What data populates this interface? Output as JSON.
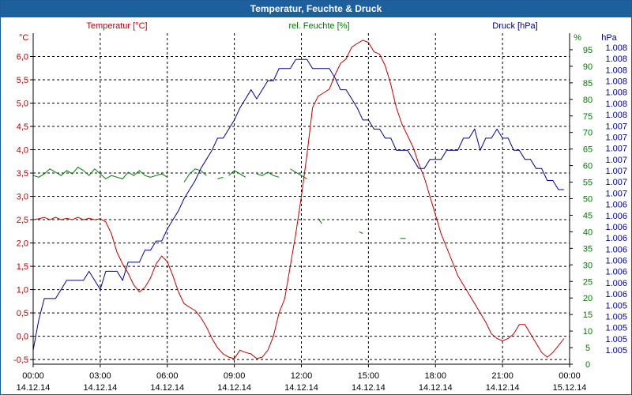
{
  "window": {
    "title": "Temperatur, Feuchte & Druck"
  },
  "colors": {
    "temperature": "#c00000",
    "humidity": "#007a00",
    "pressure": "#00008b",
    "titlebar": "#1e5f9e"
  },
  "chart_data": {
    "type": "line",
    "title": "Temperatur, Feuchte & Druck",
    "x_ticks": [
      {
        "t": 0,
        "time": "00:00",
        "date": "14.12.14"
      },
      {
        "t": 180,
        "time": "03:00",
        "date": "14.12.14"
      },
      {
        "t": 360,
        "time": "06:00",
        "date": "14.12.14"
      },
      {
        "t": 540,
        "time": "09:00",
        "date": "14.12.14"
      },
      {
        "t": 720,
        "time": "12:00",
        "date": "14.12.14"
      },
      {
        "t": 900,
        "time": "15:00",
        "date": "14.12.14"
      },
      {
        "t": 1080,
        "time": "18:00",
        "date": "14.12.14"
      },
      {
        "t": 1260,
        "time": "21:00",
        "date": "14.12.14"
      },
      {
        "t": 1440,
        "time": "00:00",
        "date": "15.12.14"
      }
    ],
    "xlim": [
      0,
      1440
    ],
    "axes": {
      "temperature": {
        "label": "Temperatur [°C]",
        "unit": "°C",
        "ylim": [
          -0.6,
          6.5
        ],
        "ticks": [
          -0.5,
          0,
          0.5,
          1,
          1.5,
          2,
          2.5,
          3,
          3.5,
          4,
          4.5,
          5,
          5.5,
          6
        ],
        "tick_labels": [
          "-0,5",
          "0,0",
          "0,5",
          "1,0",
          "1,5",
          "2,0",
          "2,5",
          "3,0",
          "3,5",
          "4,0",
          "4,5",
          "5,0",
          "5,5",
          "6,0"
        ]
      },
      "humidity": {
        "label": "rel. Feuchte [%]",
        "unit": "%",
        "ylim": [
          0,
          100
        ],
        "ticks": [
          0,
          5,
          10,
          15,
          20,
          25,
          30,
          35,
          40,
          45,
          50,
          55,
          60,
          65,
          70,
          75,
          80,
          85,
          90,
          95
        ],
        "tick_labels": [
          "0",
          "5",
          "10",
          "15",
          "20",
          "25",
          "30",
          "35",
          "40",
          "45",
          "50",
          "55",
          "60",
          "65",
          "70",
          "75",
          "80",
          "85",
          "90",
          "95"
        ]
      },
      "pressure": {
        "label": "Druck [hPa]",
        "unit": "hPa",
        "tick_labels": [
          "1.005",
          "1.005",
          "1.005",
          "1.005",
          "1.005",
          "1.006",
          "1.006",
          "1.006",
          "1.006",
          "1.006",
          "1.006",
          "1.006",
          "1.006",
          "1.006",
          "1.007",
          "1.007",
          "1.007",
          "1.007",
          "1.007",
          "1.007",
          "1.007",
          "1.008",
          "1.008",
          "1.008",
          "1.008",
          "1.008",
          "1.008",
          "1.008"
        ]
      }
    },
    "series": [
      {
        "name": "Temperatur",
        "axis": "temperature",
        "points": [
          [
            0,
            2.5
          ],
          [
            15,
            2.52
          ],
          [
            30,
            2.55
          ],
          [
            45,
            2.5
          ],
          [
            60,
            2.55
          ],
          [
            75,
            2.5
          ],
          [
            90,
            2.53
          ],
          [
            105,
            2.5
          ],
          [
            120,
            2.55
          ],
          [
            135,
            2.5
          ],
          [
            150,
            2.53
          ],
          [
            165,
            2.5
          ],
          [
            180,
            2.52
          ],
          [
            195,
            2.45
          ],
          [
            210,
            2.2
          ],
          [
            225,
            1.8
          ],
          [
            240,
            1.55
          ],
          [
            255,
            1.35
          ],
          [
            270,
            1.1
          ],
          [
            285,
            0.95
          ],
          [
            300,
            1.05
          ],
          [
            315,
            1.25
          ],
          [
            330,
            1.55
          ],
          [
            345,
            1.72
          ],
          [
            360,
            1.6
          ],
          [
            375,
            1.3
          ],
          [
            390,
            0.95
          ],
          [
            405,
            0.7
          ],
          [
            420,
            0.62
          ],
          [
            435,
            0.55
          ],
          [
            450,
            0.4
          ],
          [
            465,
            0.2
          ],
          [
            480,
            -0.05
          ],
          [
            495,
            -0.25
          ],
          [
            510,
            -0.38
          ],
          [
            525,
            -0.45
          ],
          [
            540,
            -0.48
          ],
          [
            555,
            -0.3
          ],
          [
            570,
            -0.35
          ],
          [
            585,
            -0.38
          ],
          [
            600,
            -0.48
          ],
          [
            615,
            -0.45
          ],
          [
            630,
            -0.3
          ],
          [
            645,
            0.0
          ],
          [
            660,
            0.5
          ],
          [
            675,
            0.8
          ],
          [
            690,
            1.5
          ],
          [
            705,
            2.2
          ],
          [
            720,
            3.0
          ],
          [
            735,
            3.9
          ],
          [
            750,
            4.9
          ],
          [
            765,
            5.15
          ],
          [
            780,
            5.22
          ],
          [
            795,
            5.3
          ],
          [
            810,
            5.6
          ],
          [
            825,
            5.85
          ],
          [
            840,
            5.95
          ],
          [
            855,
            6.2
          ],
          [
            870,
            6.28
          ],
          [
            885,
            6.35
          ],
          [
            900,
            6.3
          ],
          [
            915,
            6.1
          ],
          [
            930,
            6.05
          ],
          [
            945,
            5.8
          ],
          [
            960,
            5.4
          ],
          [
            975,
            4.9
          ],
          [
            990,
            4.55
          ],
          [
            1005,
            4.3
          ],
          [
            1020,
            4.05
          ],
          [
            1035,
            3.7
          ],
          [
            1050,
            3.4
          ],
          [
            1065,
            3.0
          ],
          [
            1080,
            2.6
          ],
          [
            1095,
            2.2
          ],
          [
            1110,
            1.9
          ],
          [
            1125,
            1.6
          ],
          [
            1140,
            1.3
          ],
          [
            1155,
            1.1
          ],
          [
            1170,
            0.9
          ],
          [
            1185,
            0.7
          ],
          [
            1200,
            0.5
          ],
          [
            1215,
            0.3
          ],
          [
            1230,
            0.05
          ],
          [
            1245,
            -0.05
          ],
          [
            1260,
            -0.1
          ],
          [
            1275,
            -0.05
          ],
          [
            1290,
            0.05
          ],
          [
            1305,
            0.25
          ],
          [
            1320,
            0.25
          ],
          [
            1335,
            0.05
          ],
          [
            1350,
            -0.15
          ],
          [
            1365,
            -0.35
          ],
          [
            1380,
            -0.45
          ],
          [
            1395,
            -0.35
          ],
          [
            1410,
            -0.2
          ],
          [
            1425,
            -0.05
          ]
        ]
      },
      {
        "name": "rel. Feuchte",
        "axis": "humidity",
        "segments": [
          [
            [
              0,
              57
            ],
            [
              15,
              56.5
            ],
            [
              30,
              57.5
            ],
            [
              45,
              59
            ],
            [
              60,
              58
            ],
            [
              75,
              57
            ],
            [
              90,
              58.5
            ],
            [
              105,
              57.5
            ],
            [
              120,
              59.5
            ],
            [
              135,
              58.5
            ],
            [
              150,
              57
            ],
            [
              165,
              59
            ],
            [
              180,
              57.5
            ],
            [
              195,
              56
            ],
            [
              210,
              57
            ],
            [
              225,
              56.5
            ],
            [
              240,
              56
            ],
            [
              255,
              58
            ],
            [
              270,
              57
            ],
            [
              285,
              58.5
            ],
            [
              300,
              57
            ],
            [
              315,
              56.5
            ],
            [
              330,
              57
            ],
            [
              345,
              57.5
            ],
            [
              360,
              56.5
            ]
          ],
          [
            [
              405,
              55
            ],
            [
              420,
              57.5
            ],
            [
              435,
              59
            ],
            [
              450,
              58.5
            ],
            [
              465,
              57
            ]
          ],
          [
            [
              495,
              56
            ],
            [
              510,
              56.5
            ]
          ],
          [
            [
              525,
              57
            ],
            [
              540,
              58.5
            ],
            [
              555,
              57.5
            ],
            [
              570,
              56.5
            ]
          ],
          [
            [
              600,
              57.5
            ],
            [
              615,
              57
            ],
            [
              630,
              58
            ],
            [
              645,
              57
            ],
            [
              660,
              56.5
            ]
          ],
          [
            [
              690,
              59
            ],
            [
              705,
              58
            ],
            [
              720,
              57
            ],
            [
              735,
              56
            ]
          ],
          [
            [
              765,
              44
            ],
            [
              775,
              42.5
            ]
          ],
          [
            [
              875,
              40
            ],
            [
              885,
              39.5
            ]
          ],
          [
            [
              985,
              38
            ],
            [
              1000,
              38
            ]
          ]
        ]
      },
      {
        "name": "Druck",
        "axis": "pressure",
        "points": [
          [
            0,
            0
          ],
          [
            15,
            10
          ],
          [
            30,
            17
          ],
          [
            45,
            17
          ],
          [
            60,
            17
          ],
          [
            75,
            20
          ],
          [
            90,
            23
          ],
          [
            105,
            23
          ],
          [
            120,
            23
          ],
          [
            135,
            23
          ],
          [
            150,
            26
          ],
          [
            165,
            23
          ],
          [
            180,
            20
          ],
          [
            195,
            26
          ],
          [
            210,
            26
          ],
          [
            225,
            26
          ],
          [
            240,
            23
          ],
          [
            255,
            29
          ],
          [
            270,
            29
          ],
          [
            285,
            29
          ],
          [
            300,
            33
          ],
          [
            315,
            33
          ],
          [
            330,
            36
          ],
          [
            345,
            36
          ],
          [
            360,
            40
          ],
          [
            375,
            43
          ],
          [
            390,
            46
          ],
          [
            405,
            50
          ],
          [
            420,
            53
          ],
          [
            435,
            56
          ],
          [
            450,
            60
          ],
          [
            465,
            63
          ],
          [
            480,
            66
          ],
          [
            495,
            70
          ],
          [
            510,
            70
          ],
          [
            525,
            73
          ],
          [
            540,
            76
          ],
          [
            555,
            80
          ],
          [
            570,
            83
          ],
          [
            585,
            86
          ],
          [
            600,
            83
          ],
          [
            615,
            86
          ],
          [
            630,
            89
          ],
          [
            645,
            89
          ],
          [
            660,
            93
          ],
          [
            675,
            93
          ],
          [
            690,
            93
          ],
          [
            705,
            96
          ],
          [
            720,
            96
          ],
          [
            735,
            96
          ],
          [
            750,
            93
          ],
          [
            765,
            93
          ],
          [
            780,
            93
          ],
          [
            795,
            93
          ],
          [
            810,
            90
          ],
          [
            825,
            86
          ],
          [
            840,
            86
          ],
          [
            855,
            83
          ],
          [
            870,
            80
          ],
          [
            885,
            76
          ],
          [
            900,
            76
          ],
          [
            915,
            73
          ],
          [
            930,
            73
          ],
          [
            945,
            70
          ],
          [
            960,
            70
          ],
          [
            975,
            66
          ],
          [
            990,
            66
          ],
          [
            1005,
            66
          ],
          [
            1020,
            63
          ],
          [
            1035,
            60
          ],
          [
            1050,
            60
          ],
          [
            1065,
            63
          ],
          [
            1080,
            63
          ],
          [
            1095,
            63
          ],
          [
            1110,
            66
          ],
          [
            1125,
            66
          ],
          [
            1140,
            66
          ],
          [
            1155,
            70
          ],
          [
            1170,
            70
          ],
          [
            1185,
            73
          ],
          [
            1200,
            66
          ],
          [
            1215,
            70
          ],
          [
            1230,
            70
          ],
          [
            1245,
            73
          ],
          [
            1260,
            70
          ],
          [
            1275,
            70
          ],
          [
            1290,
            66
          ],
          [
            1305,
            66
          ],
          [
            1320,
            63
          ],
          [
            1335,
            63
          ],
          [
            1350,
            60
          ],
          [
            1365,
            60
          ],
          [
            1380,
            56
          ],
          [
            1395,
            56
          ],
          [
            1410,
            53
          ],
          [
            1425,
            53
          ]
        ]
      }
    ]
  }
}
